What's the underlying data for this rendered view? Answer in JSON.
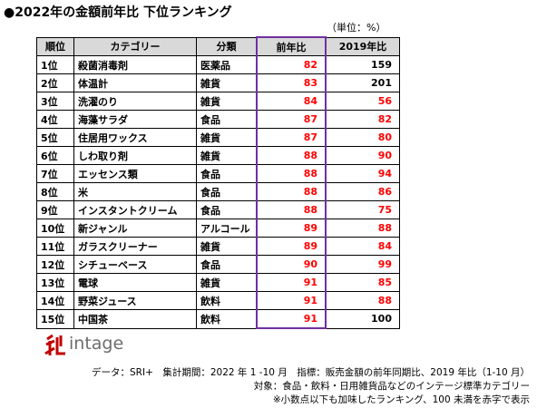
{
  "header": {
    "title": "●2022年の金額前年比 下位ランキング",
    "unit": "（単位：%）"
  },
  "table": {
    "columns": [
      "順位",
      "カテゴリー",
      "分類",
      "前年比",
      "2019年比"
    ],
    "rows": [
      [
        "1位",
        "殺菌消毒剤",
        "医薬品",
        82,
        159
      ],
      [
        "2位",
        "体温計",
        "雑貨",
        83,
        201
      ],
      [
        "3位",
        "洗濯のり",
        "雑貨",
        84,
        56
      ],
      [
        "4位",
        "海藻サラダ",
        "食品",
        87,
        82
      ],
      [
        "5位",
        "住居用ワックス",
        "雑貨",
        87,
        80
      ],
      [
        "6位",
        "しわ取り剤",
        "雑貨",
        88,
        90
      ],
      [
        "7位",
        "エッセンス類",
        "食品",
        88,
        94
      ],
      [
        "8位",
        "米",
        "食品",
        88,
        86
      ],
      [
        "9位",
        "インスタントクリーム",
        "食品",
        88,
        75
      ],
      [
        "10位",
        "新ジャンル",
        "アルコール",
        89,
        88
      ],
      [
        "11位",
        "ガラスクリーナー",
        "雑貨",
        89,
        84
      ],
      [
        "12位",
        "シチューベース",
        "食品",
        90,
        99
      ],
      [
        "13位",
        "電球",
        "雑貨",
        91,
        85
      ],
      [
        "14位",
        "野菜ジュース",
        "飲料",
        91,
        88
      ],
      [
        "15位",
        "中国茶",
        "飲料",
        91,
        100
      ]
    ],
    "value_colors": [
      [
        "#ff0000",
        "#000000"
      ],
      [
        "#ff0000",
        "#000000"
      ],
      [
        "#ff0000",
        "#ff0000"
      ],
      [
        "#ff0000",
        "#ff0000"
      ],
      [
        "#ff0000",
        "#ff0000"
      ],
      [
        "#ff0000",
        "#ff0000"
      ],
      [
        "#ff0000",
        "#ff0000"
      ],
      [
        "#ff0000",
        "#ff0000"
      ],
      [
        "#ff0000",
        "#ff0000"
      ],
      [
        "#ff0000",
        "#ff0000"
      ],
      [
        "#ff0000",
        "#ff0000"
      ],
      [
        "#ff0000",
        "#ff0000"
      ],
      [
        "#ff0000",
        "#ff0000"
      ],
      [
        "#ff0000",
        "#ff0000"
      ],
      [
        "#ff0000",
        "#000000"
      ]
    ]
  },
  "logo": {
    "text": "intage"
  },
  "notes": [
    "データ：SRI+　集計期間：2022 年 1 -10 月　指標：販売金額の前年同期比、2019 年比（1-10 月）",
    "対象：食品・飲料・日用雑貨品などのインテージ標準カテゴリー",
    "※小数点以下も加味したランキング、100 未満を赤字で表示"
  ]
}
